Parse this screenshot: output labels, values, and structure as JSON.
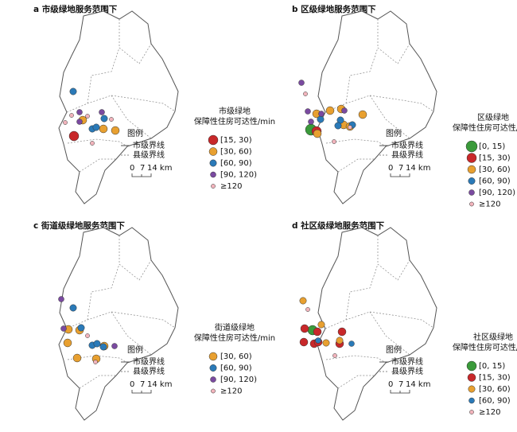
{
  "panels": [
    {
      "title": "a 市级绿地服务范围下",
      "legend_title": [
        "市级绿地",
        "保障性住房可达性/min"
      ],
      "items": [
        {
          "label": "[15, 30)",
          "color": "#c8282a"
        },
        {
          "label": "[30, 60)",
          "color": "#e8a030"
        },
        {
          "label": "[60, 90)",
          "color": "#2a7ab8"
        },
        {
          "label": "[90, 120)",
          "color": "#7a4aa0"
        },
        {
          "label": "≥120",
          "color": "#f2b4bc"
        }
      ],
      "map_legend": {
        "title": "图例",
        "city_line": "市级界线",
        "county_line": "县级界线",
        "scale": [
          "0",
          "7",
          "14 km"
        ]
      }
    },
    {
      "title": "b 区级绿地服务范围下",
      "legend_title": [
        "区级绿地",
        "保障性住房可达性/min"
      ],
      "items": [
        {
          "label": "[0, 15)",
          "color": "#3a9a3a"
        },
        {
          "label": "[15, 30)",
          "color": "#c8282a"
        },
        {
          "label": "[30, 60)",
          "color": "#e8a030"
        },
        {
          "label": "[60, 90)",
          "color": "#2a7ab8"
        },
        {
          "label": "[90, 120)",
          "color": "#7a4aa0"
        },
        {
          "label": "≥120",
          "color": "#f2b4bc"
        }
      ],
      "map_legend": {
        "title": "图例",
        "city_line": "市级界线",
        "county_line": "县级界线",
        "scale": [
          "0",
          "7",
          "14 km"
        ]
      }
    },
    {
      "title": "c 街道级绿地服务范围下",
      "legend_title": [
        "街道级绿地",
        "保障性住房可达性/min"
      ],
      "items": [
        {
          "label": "[30, 60)",
          "color": "#e8a030"
        },
        {
          "label": "[60, 90)",
          "color": "#2a7ab8"
        },
        {
          "label": "[90, 120)",
          "color": "#7a4aa0"
        },
        {
          "label": "≥120",
          "color": "#f2b4bc"
        }
      ],
      "map_legend": {
        "title": "图例",
        "city_line": "市级界线",
        "county_line": "县级界线",
        "scale": [
          "0",
          "7",
          "14 km"
        ]
      }
    },
    {
      "title": "d 社区级绿地服务范围下",
      "legend_title": [
        "社区级绿地",
        "保障性住房可达性/min"
      ],
      "items": [
        {
          "label": "[0, 15)",
          "color": "#3a9a3a"
        },
        {
          "label": "[15, 30)",
          "color": "#c8282a"
        },
        {
          "label": "[30, 60)",
          "color": "#e8a030"
        },
        {
          "label": "[60, 90)",
          "color": "#2a7ab8"
        },
        {
          "label": "≥120",
          "color": "#f2b4bc"
        }
      ],
      "map_legend": {
        "title": "图例",
        "city_line": "市级界线",
        "county_line": "县级界线",
        "scale": [
          "0",
          "7",
          "14 km"
        ]
      }
    }
  ]
}
